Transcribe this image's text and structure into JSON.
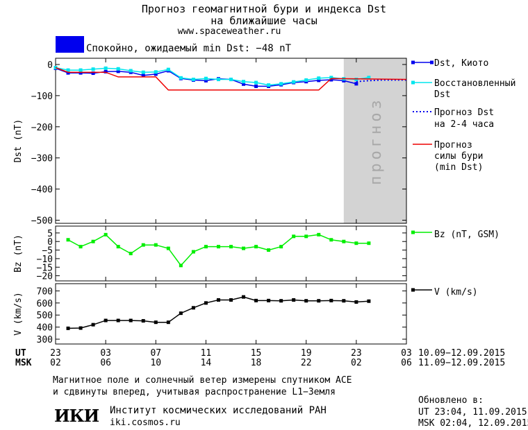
{
  "header": {
    "title_line1": "Прогноз геомагнитной бури и индекса Dst",
    "title_line2": "на ближайшие часы",
    "url": "www.spaceweather.ru",
    "status_text": "Спокойно, ожидаемый min Dst: −48 nT",
    "status_color": "#0000ee"
  },
  "chart_data": [
    {
      "type": "line",
      "panel": "dst",
      "ylabel": "Dst (nT)",
      "ylim": [
        -510,
        20
      ],
      "yticks": [
        0,
        -100,
        -200,
        -300,
        -400,
        -500
      ],
      "yticklabels": [
        "0",
        "−100",
        "−200",
        "−300",
        "−400",
        "−500"
      ],
      "xlim": [
        23,
        51
      ],
      "forecast_label": "прогноз",
      "forecast_region": [
        46,
        51
      ],
      "series": [
        {
          "name": "Dst, Киото",
          "color": "#0000ee",
          "marker": "square",
          "x": [
            23,
            24,
            25,
            26,
            27,
            28,
            29,
            30,
            31,
            32,
            33,
            34,
            35,
            36,
            37,
            38,
            39,
            40,
            41,
            42,
            43,
            44,
            45,
            46,
            47
          ],
          "y": [
            -12,
            -27,
            -27,
            -28,
            -23,
            -22,
            -25,
            -35,
            -31,
            -20,
            -45,
            -50,
            -52,
            -46,
            -48,
            -63,
            -70,
            -70,
            -65,
            -58,
            -55,
            -51,
            -49,
            -52,
            -62
          ]
        },
        {
          "name": "Восстановленный Dst",
          "color": "#00e5ee",
          "marker": "square",
          "x": [
            23,
            24,
            25,
            26,
            27,
            28,
            29,
            30,
            31,
            32,
            33,
            34,
            35,
            36,
            37,
            38,
            39,
            40,
            41,
            42,
            43,
            44,
            45,
            46,
            47,
            48
          ],
          "y": [
            -10,
            -18,
            -18,
            -15,
            -12,
            -14,
            -20,
            -25,
            -24,
            -16,
            -43,
            -48,
            -45,
            -48,
            -48,
            -55,
            -58,
            -66,
            -62,
            -56,
            -50,
            -44,
            -42,
            -46,
            -48,
            -42
          ]
        },
        {
          "name": "Прогноз Dst на 2-4 часа",
          "color": "#0000ee",
          "marker": "none",
          "dotted": true,
          "x": [
            47,
            48,
            49,
            50,
            51
          ],
          "y": [
            -55,
            -52,
            -50,
            -50,
            -50
          ]
        },
        {
          "name": "Прогноз силы бури (min Dst)",
          "color": "#ee0000",
          "marker": "none",
          "x": [
            23,
            24,
            27,
            28,
            30,
            31,
            32,
            44,
            45,
            51
          ],
          "y": [
            -10,
            -25,
            -25,
            -40,
            -40,
            -40,
            -82,
            -82,
            -45,
            -48
          ]
        }
      ],
      "legend": [
        "Dst, Киото",
        "Восстановленный",
        "Dst",
        "Прогноз Dst",
        "на 2-4 часа",
        "Прогноз",
        "силы бури",
        "(min Dst)"
      ]
    },
    {
      "type": "line",
      "panel": "bz",
      "ylabel": "Bz (nT)",
      "ylim": [
        -23,
        9
      ],
      "yticks": [
        5,
        0,
        -5,
        -10,
        -15,
        -20
      ],
      "yticklabels": [
        "5",
        "0",
        "−5",
        "−10",
        "−15",
        "−20"
      ],
      "xlim": [
        23,
        51
      ],
      "series": [
        {
          "name": "Bz (nT, GSM)",
          "color": "#00ee00",
          "marker": "square",
          "x": [
            24,
            25,
            26,
            27,
            28,
            29,
            30,
            31,
            32,
            33,
            34,
            35,
            36,
            37,
            38,
            39,
            40,
            41,
            42,
            43,
            44,
            45,
            46,
            47,
            48
          ],
          "y": [
            1,
            -3,
            0,
            4,
            -3,
            -7,
            -2,
            -2,
            -4,
            -14,
            -6,
            -3,
            -3,
            -3,
            -4,
            -3,
            -5,
            -3,
            3,
            3,
            4,
            1,
            0,
            -1,
            -1
          ]
        }
      ],
      "legend": [
        "Bz (nT, GSM)"
      ]
    },
    {
      "type": "line",
      "panel": "v",
      "ylabel": "V (km/s)",
      "ylim": [
        260,
        760
      ],
      "yticks": [
        300,
        400,
        500,
        600,
        700
      ],
      "yticklabels": [
        "300",
        "400",
        "500",
        "600",
        "700"
      ],
      "xlim": [
        23,
        51
      ],
      "series": [
        {
          "name": "V (km/s)",
          "color": "#000000",
          "marker": "square",
          "x": [
            24,
            25,
            26,
            27,
            28,
            29,
            30,
            31,
            32,
            33,
            34,
            35,
            36,
            37,
            38,
            39,
            40,
            41,
            42,
            43,
            44,
            45,
            46,
            47,
            48
          ],
          "y": [
            390,
            392,
            420,
            455,
            455,
            455,
            452,
            440,
            440,
            515,
            560,
            600,
            625,
            625,
            650,
            620,
            620,
            618,
            625,
            618,
            618,
            620,
            618,
            608,
            615
          ]
        }
      ],
      "legend": [
        "V (km/s)"
      ]
    }
  ],
  "xaxis": {
    "ticks": [
      23,
      27,
      31,
      35,
      39,
      43,
      47,
      51
    ],
    "ut_label": "UT",
    "msk_label": "MSK",
    "ut_ticks": [
      "23",
      "03",
      "07",
      "11",
      "15",
      "19",
      "23",
      "03"
    ],
    "msk_ticks": [
      "02",
      "06",
      "10",
      "14",
      "18",
      "22",
      "02",
      "06"
    ],
    "ut_range": "10.09−12.09.2015",
    "msk_range": "11.09−12.09.2015"
  },
  "footer": {
    "note_line1": "Магнитное поле и солнечный ветер измерены спутником ACE",
    "note_line2": "и сдвинуты вперед, учитывая распространение L1−Земля",
    "logo": "ИКИ",
    "institute": "Институт космических исследований РАН",
    "institute_url": "iki.cosmos.ru",
    "updated_label": "Обновлено в:",
    "updated_ut": "UT  23:04, 11.09.2015",
    "updated_msk": "MSK 02:04, 12.09.2015"
  }
}
